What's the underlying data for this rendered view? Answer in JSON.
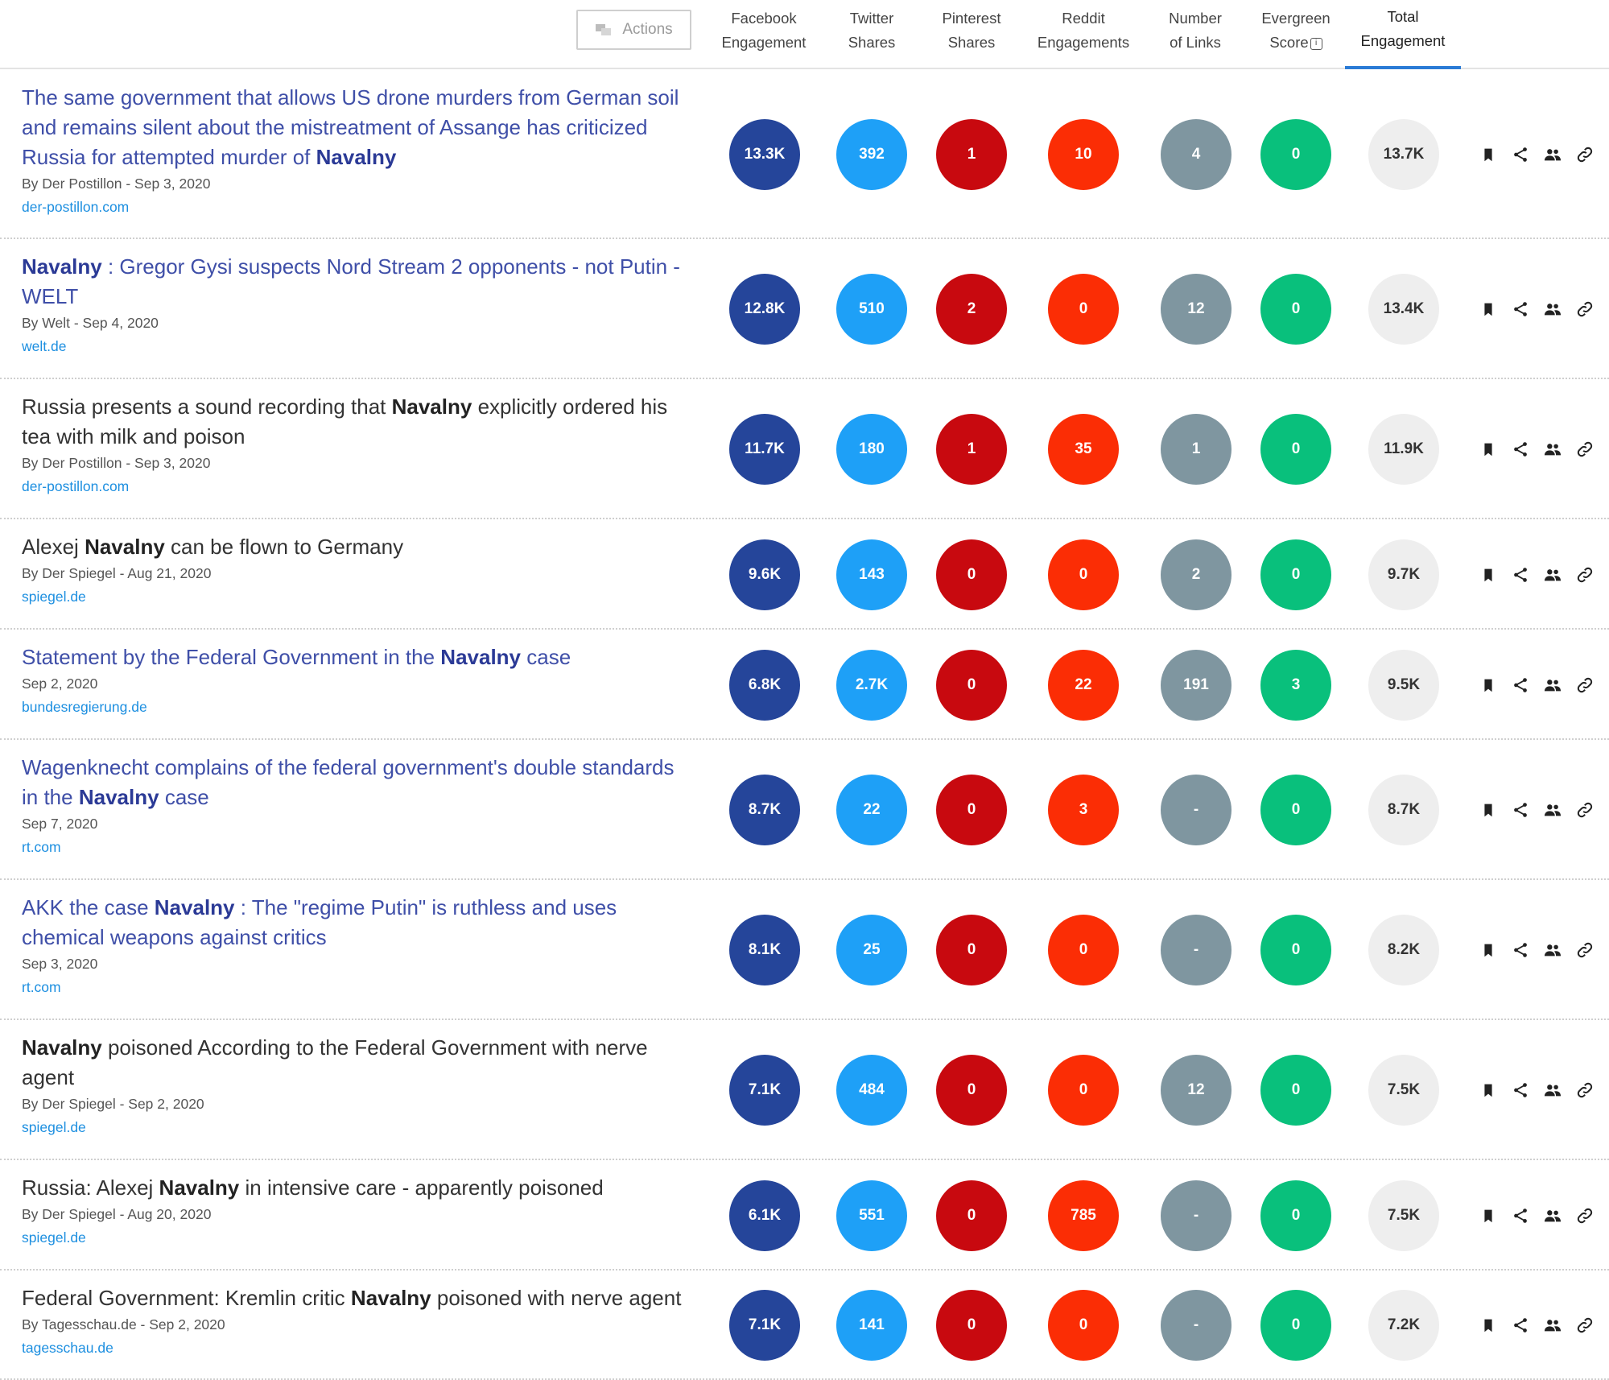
{
  "header": {
    "actions_label": "Actions",
    "columns": [
      {
        "line1": "Facebook",
        "line2": "Engagement"
      },
      {
        "line1": "Twitter",
        "line2": "Shares"
      },
      {
        "line1": "Pinterest",
        "line2": "Shares"
      },
      {
        "line1": "Reddit",
        "line2": "Engagements"
      },
      {
        "line1": "Number",
        "line2": "of Links"
      },
      {
        "line1": "Evergreen",
        "line2": "Score"
      },
      {
        "line1": "Total",
        "line2": "Engagement"
      }
    ]
  },
  "colors": {
    "facebook": "#25459a",
    "twitter": "#1ea0f7",
    "pinterest": "#c8090f",
    "reddit": "#fb2d05",
    "links": "#7f96a0",
    "evergreen": "#09c07c",
    "total": "#eeeeee",
    "active_tab": "#2a7bd6"
  },
  "rows": [
    {
      "title_a": "The same government that allows US drone murders from German soil and remains silent about the mistreatment of Assange has criticized Russia for attempted murder of",
      "title_b": "Navalny",
      "title_c": "",
      "byline": "By Der Postillon - Sep 3, 2020",
      "domain": "der-postillon.com",
      "facebook": "13.3K",
      "twitter": "392",
      "pinterest": "1",
      "reddit": "10",
      "links": "4",
      "evergreen": "0",
      "total": "13.7K"
    },
    {
      "title_a": "",
      "title_b": "Navalny",
      "title_c": ": Gregor Gysi suspects Nord Stream 2 opponents - not Putin - WELT",
      "byline": "By Welt - Sep 4, 2020",
      "domain": "welt.de",
      "facebook": "12.8K",
      "twitter": "510",
      "pinterest": "2",
      "reddit": "0",
      "links": "12",
      "evergreen": "0",
      "total": "13.4K"
    },
    {
      "title_a": "Russia presents a sound recording that",
      "title_b": "Navalny",
      "title_c": "explicitly ordered his tea with milk and poison",
      "byline": "By Der Postillon - Sep 3, 2020",
      "domain": "der-postillon.com",
      "facebook": "11.7K",
      "twitter": "180",
      "pinterest": "1",
      "reddit": "35",
      "links": "1",
      "evergreen": "0",
      "total": "11.9K"
    },
    {
      "title_a": "Alexej",
      "title_b": "Navalny",
      "title_c": "can be flown to Germany",
      "byline": "By Der Spiegel - Aug 21, 2020",
      "domain": "spiegel.de",
      "facebook": "9.6K",
      "twitter": "143",
      "pinterest": "0",
      "reddit": "0",
      "links": "2",
      "evergreen": "0",
      "total": "9.7K"
    },
    {
      "title_a": "Statement by the Federal Government in the",
      "title_b": "Navalny",
      "title_c": "case",
      "byline": "Sep 2, 2020",
      "domain": "bundesregierung.de",
      "facebook": "6.8K",
      "twitter": "2.7K",
      "pinterest": "0",
      "reddit": "22",
      "links": "191",
      "evergreen": "3",
      "total": "9.5K"
    },
    {
      "title_a": "Wagenknecht complains of the federal government's double standards in the",
      "title_b": "Navalny",
      "title_c": "case",
      "byline": "Sep 7, 2020",
      "domain": "rt.com",
      "facebook": "8.7K",
      "twitter": "22",
      "pinterest": "0",
      "reddit": "3",
      "links": "-",
      "evergreen": "0",
      "total": "8.7K"
    },
    {
      "title_a": "AKK the case",
      "title_b": "Navalny",
      "title_c": ": The \"regime Putin\" is ruthless and uses chemical weapons against critics",
      "byline": "Sep 3, 2020",
      "domain": "rt.com",
      "facebook": "8.1K",
      "twitter": "25",
      "pinterest": "0",
      "reddit": "0",
      "links": "-",
      "evergreen": "0",
      "total": "8.2K"
    },
    {
      "title_a": "",
      "title_b": "Navalny",
      "title_c": "poisoned According to the Federal Government with nerve agent",
      "byline": "By Der Spiegel - Sep 2, 2020",
      "domain": "spiegel.de",
      "facebook": "7.1K",
      "twitter": "484",
      "pinterest": "0",
      "reddit": "0",
      "links": "12",
      "evergreen": "0",
      "total": "7.5K"
    },
    {
      "title_a": "Russia: Alexej",
      "title_b": "Navalny",
      "title_c": "in intensive care - apparently poisoned",
      "byline": "By Der Spiegel - Aug 20, 2020",
      "domain": "spiegel.de",
      "facebook": "6.1K",
      "twitter": "551",
      "pinterest": "0",
      "reddit": "785",
      "links": "-",
      "evergreen": "0",
      "total": "7.5K"
    },
    {
      "title_a": "Federal Government: Kremlin critic",
      "title_b": "Navalny",
      "title_c": "poisoned with nerve agent",
      "byline": "By Tagesschau.de - Sep 2, 2020",
      "domain": "tagesschau.de",
      "facebook": "7.1K",
      "twitter": "141",
      "pinterest": "0",
      "reddit": "0",
      "links": "-",
      "evergreen": "0",
      "total": "7.2K"
    }
  ]
}
